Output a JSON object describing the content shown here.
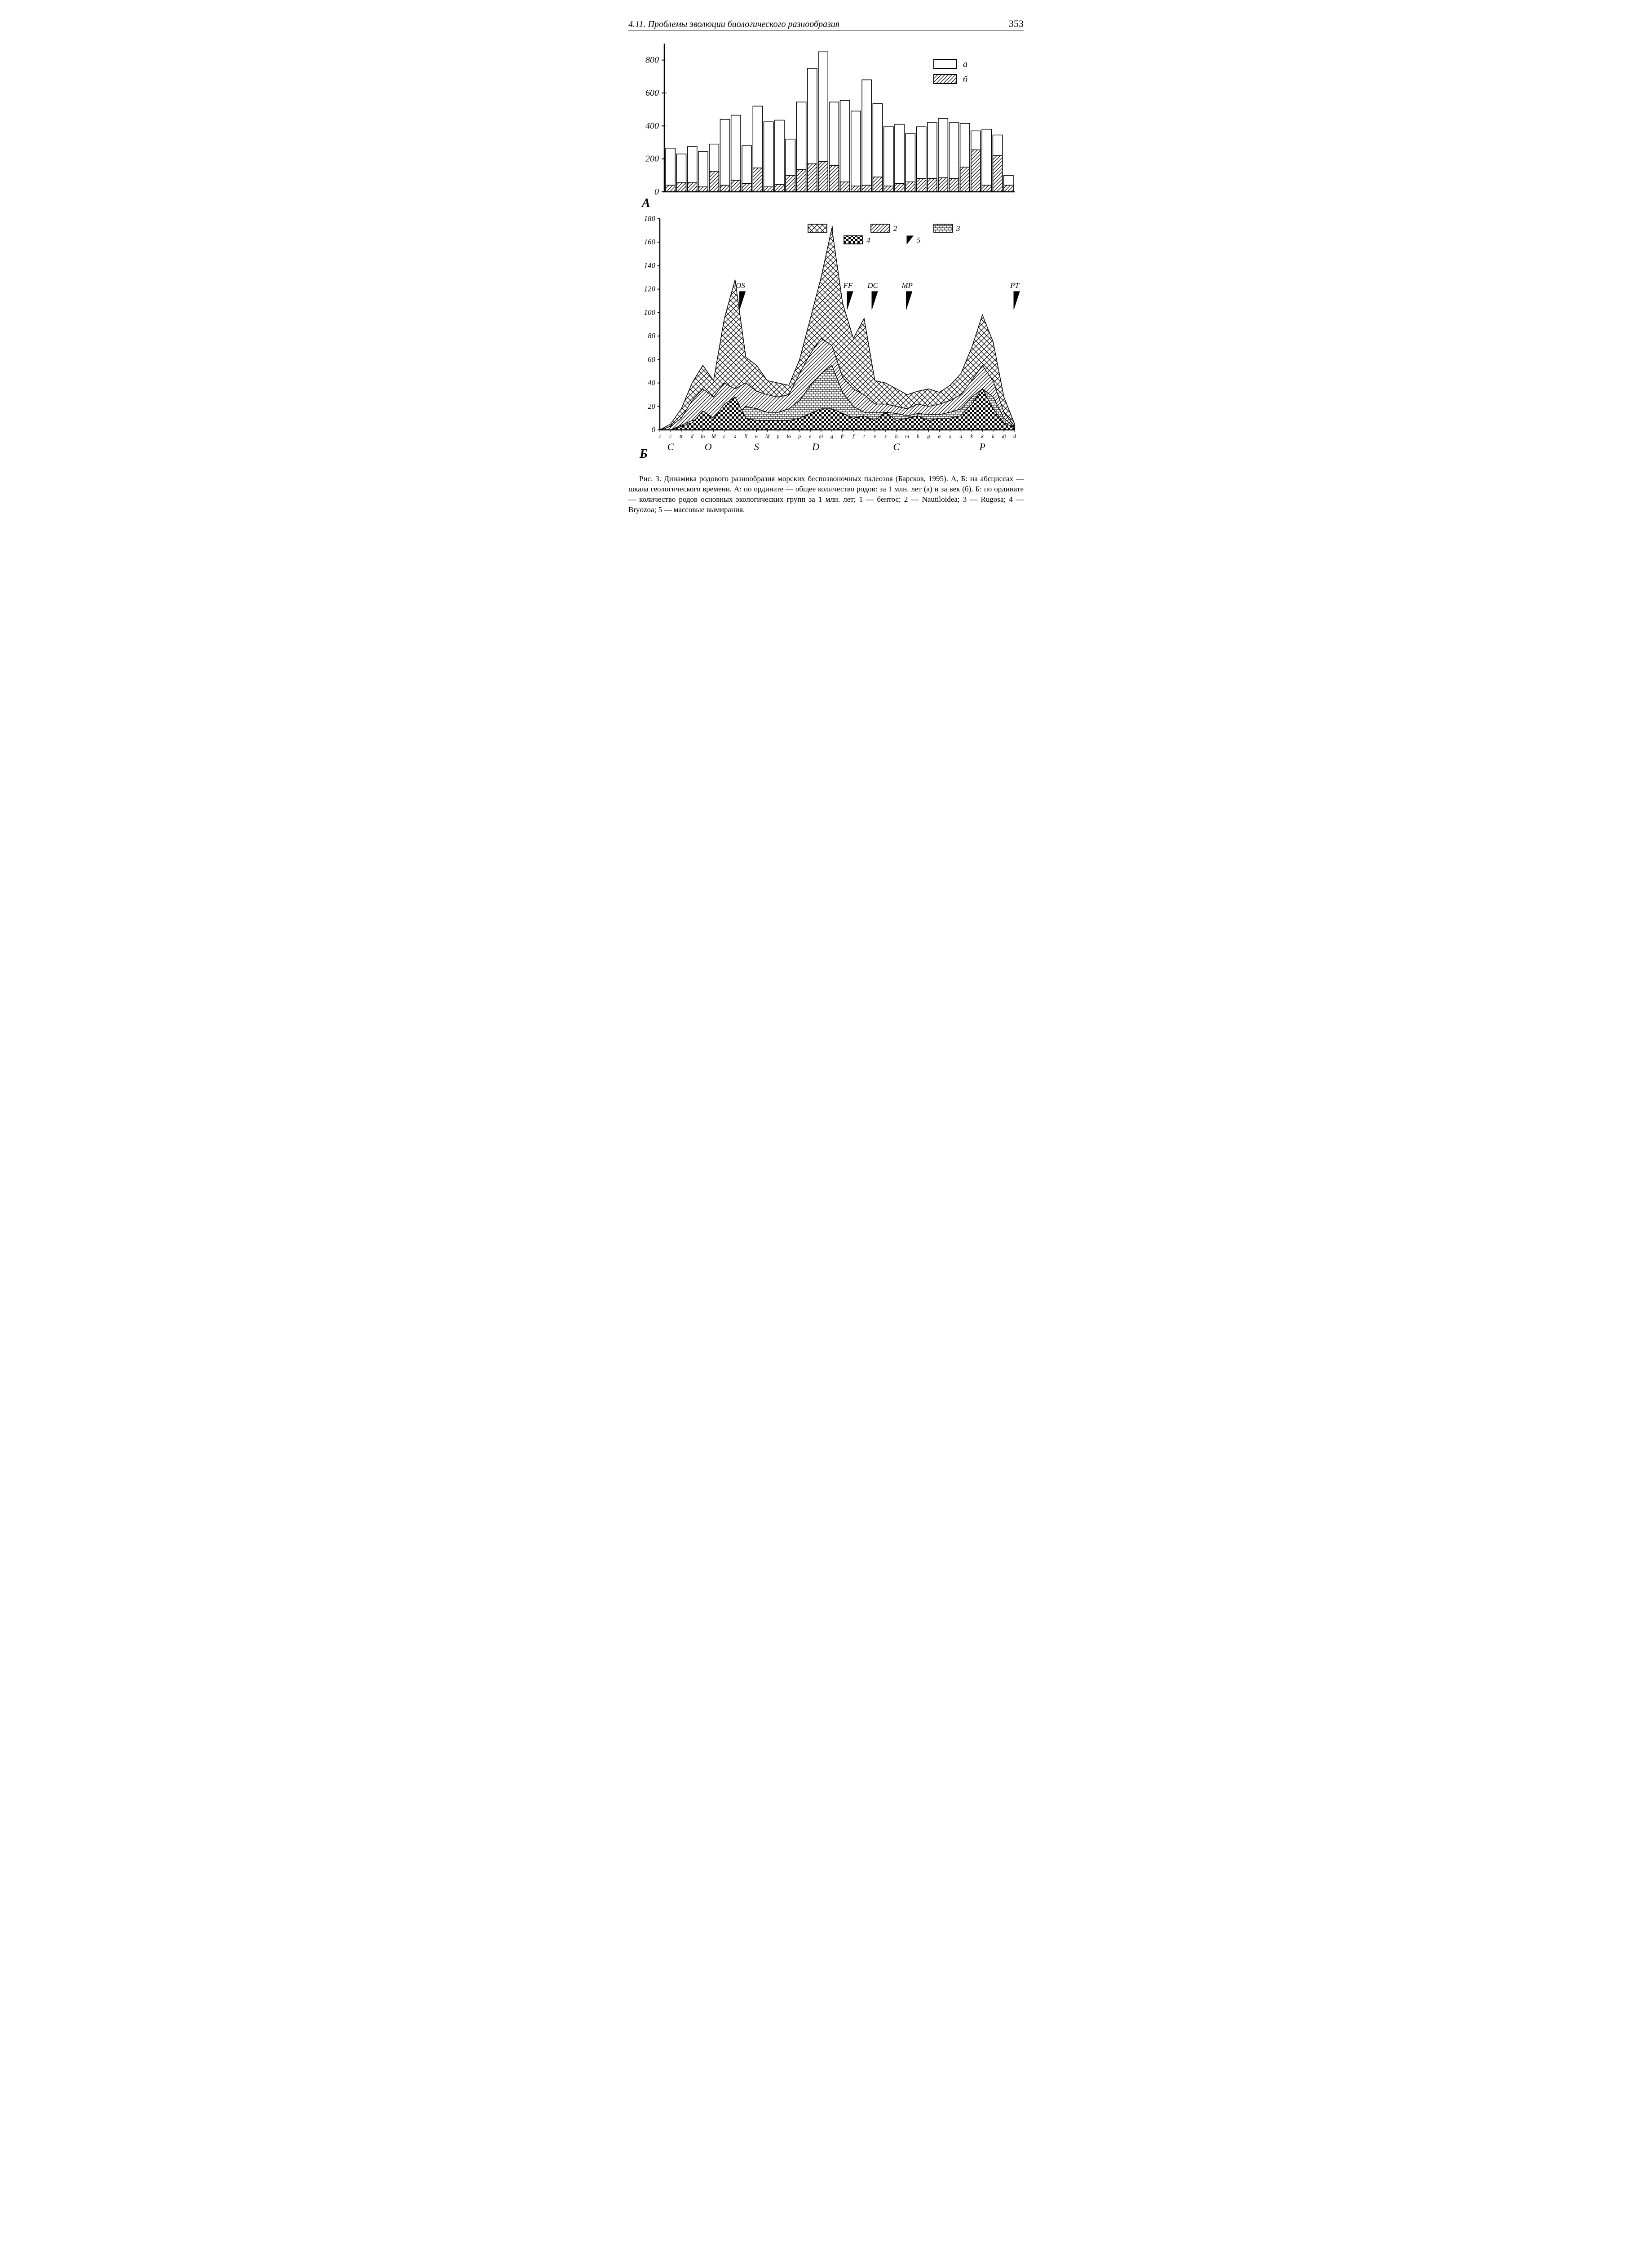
{
  "header": {
    "section": "4.11. Проблемы эволюции биологического разнообразия",
    "page": "353"
  },
  "chartA": {
    "type": "bar",
    "panel_label": "А",
    "ylim": [
      0,
      900
    ],
    "yticks": [
      0,
      200,
      400,
      600,
      800
    ],
    "bar_border": "#000000",
    "hatch_color": "#000000",
    "background": "#ffffff",
    "legend": {
      "a": "а",
      "b": "б"
    },
    "series_a": [
      265,
      230,
      275,
      245,
      290,
      440,
      465,
      280,
      520,
      425,
      435,
      320,
      545,
      750,
      850,
      545,
      555,
      490,
      680,
      535,
      395,
      410,
      355,
      395,
      420,
      445,
      420,
      415,
      370,
      380,
      345,
      100
    ],
    "series_b": [
      40,
      55,
      55,
      30,
      125,
      40,
      70,
      50,
      145,
      30,
      45,
      100,
      135,
      170,
      185,
      160,
      60,
      35,
      40,
      90,
      35,
      50,
      60,
      80,
      80,
      85,
      80,
      150,
      255,
      40,
      220,
      40
    ],
    "axis_fontsize": 20,
    "line_width": 2
  },
  "chartB": {
    "type": "area",
    "panel_label": "Б",
    "ylim": [
      0,
      180
    ],
    "yticks": [
      0,
      20,
      40,
      60,
      80,
      100,
      120,
      140,
      160,
      180
    ],
    "line_color": "#000000",
    "background": "#ffffff",
    "legend": {
      "1": "1",
      "2": "2",
      "3": "3",
      "4": "4",
      "5": "5"
    },
    "n_points": 34,
    "series1": [
      0,
      5,
      18,
      40,
      55,
      42,
      95,
      128,
      62,
      55,
      42,
      40,
      38,
      60,
      95,
      130,
      172,
      108,
      78,
      95,
      42,
      40,
      35,
      30,
      33,
      35,
      32,
      38,
      48,
      70,
      98,
      75,
      28,
      5
    ],
    "series2": [
      0,
      3,
      10,
      25,
      35,
      28,
      40,
      35,
      40,
      33,
      30,
      28,
      30,
      48,
      65,
      78,
      72,
      45,
      35,
      30,
      22,
      22,
      20,
      18,
      22,
      20,
      22,
      25,
      30,
      42,
      55,
      42,
      15,
      3
    ],
    "series3": [
      0,
      0,
      4,
      8,
      10,
      8,
      20,
      12,
      20,
      18,
      15,
      15,
      18,
      25,
      38,
      48,
      55,
      32,
      20,
      15,
      15,
      15,
      14,
      12,
      14,
      13,
      13,
      15,
      18,
      28,
      35,
      28,
      10,
      2
    ],
    "series4": [
      0,
      0,
      3,
      6,
      16,
      10,
      22,
      28,
      10,
      8,
      8,
      8,
      8,
      10,
      14,
      18,
      18,
      14,
      10,
      12,
      8,
      15,
      8,
      10,
      12,
      8,
      10,
      10,
      12,
      22,
      35,
      18,
      6,
      2
    ],
    "extinction_markers": [
      {
        "label": "OS",
        "x_index": 7.5
      },
      {
        "label": "FF",
        "x_index": 17.5
      },
      {
        "label": "DC",
        "x_index": 19.8
      },
      {
        "label": "MP",
        "x_index": 23
      },
      {
        "label": "PT",
        "x_index": 33
      }
    ],
    "xticks_minor": [
      "c",
      "c",
      "tr",
      "d",
      "ln",
      "ld",
      "c",
      "a",
      "ll",
      "w",
      "ld",
      "p",
      "lo",
      "p",
      "e",
      "ei",
      "g",
      "fr",
      "f",
      "t",
      "v",
      "s",
      "b",
      "m",
      "k",
      "g",
      "a",
      "s",
      "a",
      "k",
      "k",
      "k",
      "dj",
      "d"
    ],
    "periods": [
      {
        "label": "C",
        "from": 0,
        "to": 2
      },
      {
        "label": "O",
        "from": 2,
        "to": 7
      },
      {
        "label": "S",
        "from": 7,
        "to": 11
      },
      {
        "label": "D",
        "from": 11,
        "to": 18
      },
      {
        "label": "C",
        "from": 18,
        "to": 26
      },
      {
        "label": "P",
        "from": 26,
        "to": 34
      }
    ],
    "axis_fontsize": 17,
    "marker_label_fontsize": 17
  },
  "caption": {
    "text": "Рис. 3. Динамика родового разнообразия морских беспозвоночных палеозоя (Барсков, 1995). А, Б: на абсциссах — шкала геологического времени. А: по ординате — общее количество родов: за 1 млн. лет (а) и за век (б). Б: по ординате — количество родов основных экологических групп за 1 млн. лет; 1 — бентос; 2 — Nautiloidea; 3 — Rugosa; 4 — Bryozoa; 5 — массовые вымирания."
  }
}
